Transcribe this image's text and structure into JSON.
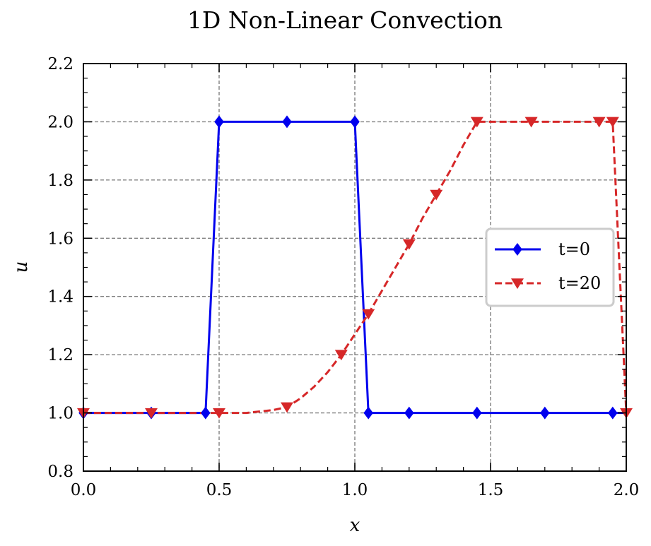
{
  "chart_data": {
    "type": "line",
    "title": "1D Non-Linear Convection",
    "xlabel": "x",
    "ylabel": "u",
    "xlim": [
      0.0,
      2.0
    ],
    "ylim": [
      0.8,
      2.2
    ],
    "xticks": [
      "0.0",
      "0.5",
      "1.0",
      "1.5",
      "2.0"
    ],
    "yticks": [
      "0.8",
      "1.0",
      "1.2",
      "1.4",
      "1.6",
      "1.8",
      "2.0",
      "2.2"
    ],
    "grid": true,
    "legend_position": "center-right",
    "series": [
      {
        "name": "t=0",
        "color": "#0000ee",
        "linestyle": "solid",
        "marker": "diamond",
        "x": [
          0.0,
          0.45,
          0.5,
          1.0,
          1.05,
          2.0
        ],
        "y": [
          1.0,
          1.0,
          2.0,
          2.0,
          1.0,
          1.0
        ],
        "marker_x": [
          0.0,
          0.25,
          0.45,
          0.5,
          0.75,
          1.0,
          1.05,
          1.2,
          1.45,
          1.7,
          1.95
        ],
        "marker_y": [
          1.0,
          1.0,
          1.0,
          2.0,
          2.0,
          2.0,
          1.0,
          1.0,
          1.0,
          1.0,
          1.0
        ]
      },
      {
        "name": "t=20",
        "color": "#d62728",
        "linestyle": "dashed",
        "marker": "triangle-down",
        "x": [
          0.0,
          0.25,
          0.5,
          0.6,
          0.7,
          0.75,
          0.8,
          0.85,
          0.9,
          0.95,
          1.0,
          1.05,
          1.1,
          1.15,
          1.2,
          1.25,
          1.3,
          1.35,
          1.4,
          1.45,
          1.65,
          1.9,
          1.95,
          2.0
        ],
        "y": [
          1.0,
          1.0,
          1.0,
          1.0,
          1.01,
          1.02,
          1.05,
          1.09,
          1.14,
          1.2,
          1.27,
          1.34,
          1.42,
          1.5,
          1.58,
          1.67,
          1.75,
          1.83,
          1.92,
          2.0,
          2.0,
          2.0,
          2.0,
          1.0
        ],
        "marker_x": [
          0.0,
          0.25,
          0.5,
          0.75,
          0.95,
          1.05,
          1.2,
          1.3,
          1.45,
          1.65,
          1.9,
          1.95,
          2.0
        ],
        "marker_y": [
          1.0,
          1.0,
          1.0,
          1.02,
          1.2,
          1.34,
          1.58,
          1.75,
          2.0,
          2.0,
          2.0,
          2.0,
          1.0
        ]
      }
    ]
  }
}
